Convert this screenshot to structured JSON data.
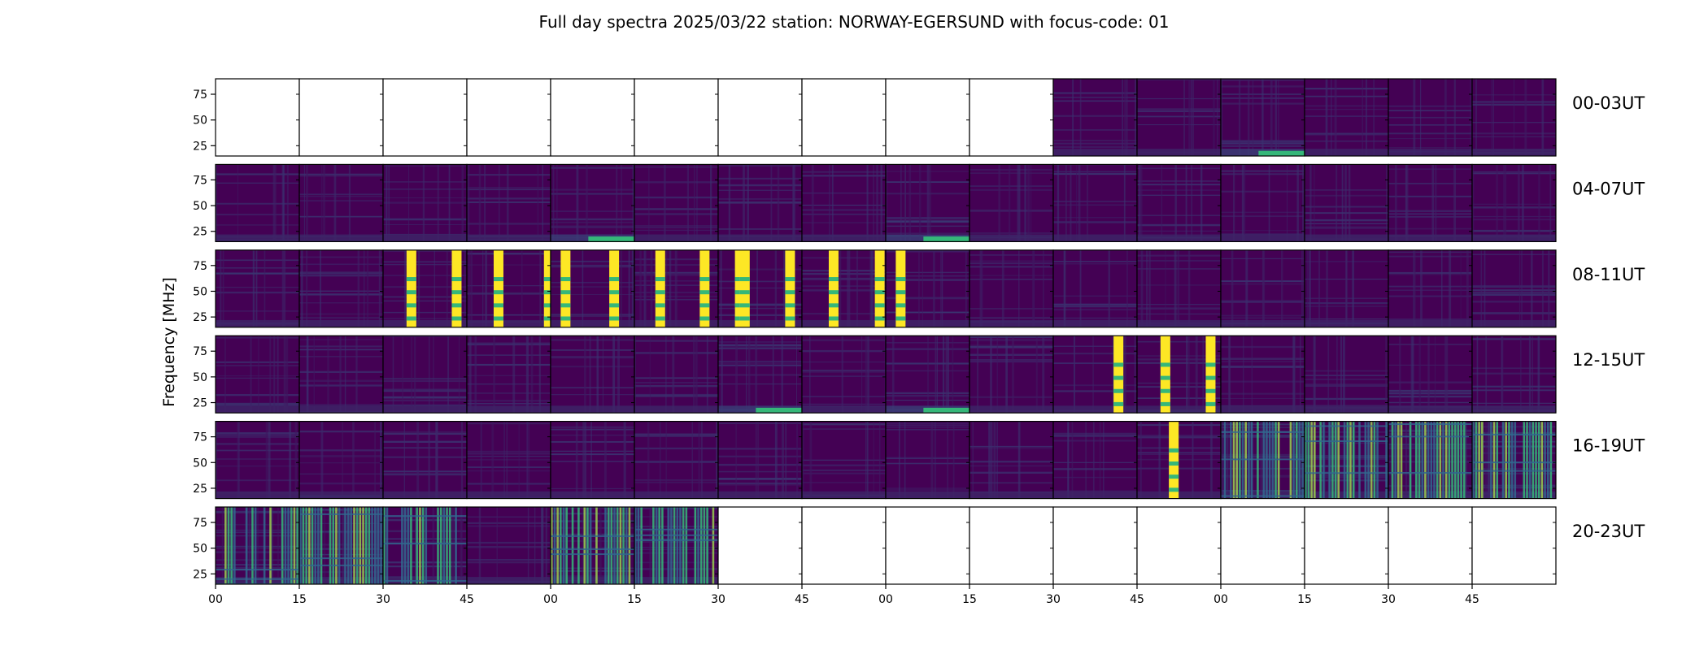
{
  "chart_data": {
    "type": "heatmap",
    "title": "Full day spectra 2025/03/22 station: NORWAY-EGERSUND with focus-code: 01",
    "ylabel": "Frequency [MHz]",
    "xlabel": "",
    "ylim": [
      15,
      90
    ],
    "y_ticks": [
      25,
      50,
      75
    ],
    "x_tick_labels": [
      "00",
      "15",
      "30",
      "45",
      "00",
      "15",
      "30",
      "45",
      "00",
      "15",
      "30",
      "45",
      "00",
      "15",
      "30",
      "45"
    ],
    "panels_per_row": 16,
    "panel_minutes": 15,
    "colormap": "viridis",
    "colors": {
      "background": "#440154",
      "mid": "#31688e",
      "high": "#35b779",
      "peak": "#fde725"
    },
    "rows": [
      {
        "label": "00-03UT",
        "panels": [
          {
            "data": false
          },
          {
            "data": false
          },
          {
            "data": false
          },
          {
            "data": false
          },
          {
            "data": false
          },
          {
            "data": false
          },
          {
            "data": false
          },
          {
            "data": false
          },
          {
            "data": false
          },
          {
            "data": false
          },
          {
            "data": true,
            "activity": 0.25
          },
          {
            "data": true,
            "activity": 0.2
          },
          {
            "data": true,
            "activity": 0.35,
            "low_band": true
          },
          {
            "data": true,
            "activity": 0.25
          },
          {
            "data": true,
            "activity": 0.2
          },
          {
            "data": true,
            "activity": 0.2
          }
        ]
      },
      {
        "label": "04-07UT",
        "panels": [
          {
            "data": true,
            "activity": 0.3
          },
          {
            "data": true,
            "activity": 0.25
          },
          {
            "data": true,
            "activity": 0.3
          },
          {
            "data": true,
            "activity": 0.25
          },
          {
            "data": true,
            "activity": 0.4,
            "low_band": true
          },
          {
            "data": true,
            "activity": 0.25
          },
          {
            "data": true,
            "activity": 0.3
          },
          {
            "data": true,
            "activity": 0.3
          },
          {
            "data": true,
            "activity": 0.45,
            "low_band": true
          },
          {
            "data": true,
            "activity": 0.25
          },
          {
            "data": true,
            "activity": 0.3
          },
          {
            "data": true,
            "activity": 0.25
          },
          {
            "data": true,
            "activity": 0.3
          },
          {
            "data": true,
            "activity": 0.3
          },
          {
            "data": true,
            "activity": 0.3
          },
          {
            "data": true,
            "activity": 0.35
          }
        ]
      },
      {
        "label": "08-11UT",
        "panels": [
          {
            "data": true,
            "activity": 0.3
          },
          {
            "data": true,
            "activity": 0.35
          },
          {
            "data": true,
            "activity": 0.3,
            "bursts": [
              0.28,
              0.82
            ]
          },
          {
            "data": true,
            "activity": 0.3,
            "bursts": [
              0.32,
              0.92
            ]
          },
          {
            "data": true,
            "activity": 0.3,
            "bursts": [
              0.12,
              0.7
            ]
          },
          {
            "data": true,
            "activity": 0.3,
            "bursts": [
              0.25,
              0.78
            ]
          },
          {
            "data": true,
            "activity": 0.35,
            "bursts": [
              0.2,
              0.26,
              0.8
            ]
          },
          {
            "data": true,
            "activity": 0.3,
            "bursts": [
              0.32,
              0.87
            ]
          },
          {
            "data": true,
            "activity": 0.35,
            "bursts": [
              0.12
            ]
          },
          {
            "data": true,
            "activity": 0.25
          },
          {
            "data": true,
            "activity": 0.3
          },
          {
            "data": true,
            "activity": 0.3
          },
          {
            "data": true,
            "activity": 0.3
          },
          {
            "data": true,
            "activity": 0.3
          },
          {
            "data": true,
            "activity": 0.3
          },
          {
            "data": true,
            "activity": 0.3
          }
        ]
      },
      {
        "label": "12-15UT",
        "panels": [
          {
            "data": true,
            "activity": 0.35
          },
          {
            "data": true,
            "activity": 0.3
          },
          {
            "data": true,
            "activity": 0.35
          },
          {
            "data": true,
            "activity": 0.35
          },
          {
            "data": true,
            "activity": 0.3
          },
          {
            "data": true,
            "activity": 0.3
          },
          {
            "data": true,
            "activity": 0.45,
            "low_band": true
          },
          {
            "data": true,
            "activity": 0.3
          },
          {
            "data": true,
            "activity": 0.4,
            "low_band": true
          },
          {
            "data": true,
            "activity": 0.25
          },
          {
            "data": true,
            "activity": 0.3,
            "bursts": [
              0.72
            ]
          },
          {
            "data": true,
            "activity": 0.3,
            "bursts": [
              0.28,
              0.82
            ]
          },
          {
            "data": true,
            "activity": 0.3
          },
          {
            "data": true,
            "activity": 0.3
          },
          {
            "data": true,
            "activity": 0.35
          },
          {
            "data": true,
            "activity": 0.35
          }
        ]
      },
      {
        "label": "16-19UT",
        "panels": [
          {
            "data": true,
            "activity": 0.25
          },
          {
            "data": true,
            "activity": 0.25
          },
          {
            "data": true,
            "activity": 0.25
          },
          {
            "data": true,
            "activity": 0.25
          },
          {
            "data": true,
            "activity": 0.25
          },
          {
            "data": true,
            "activity": 0.25
          },
          {
            "data": true,
            "activity": 0.25
          },
          {
            "data": true,
            "activity": 0.2
          },
          {
            "data": true,
            "activity": 0.25
          },
          {
            "data": true,
            "activity": 0.2
          },
          {
            "data": true,
            "activity": 0.3
          },
          {
            "data": true,
            "activity": 0.3,
            "bursts": [
              0.38
            ]
          },
          {
            "data": true,
            "activity": 0.85,
            "stripes": true
          },
          {
            "data": true,
            "activity": 0.9,
            "stripes": true
          },
          {
            "data": true,
            "activity": 0.8,
            "stripes": true
          },
          {
            "data": true,
            "activity": 0.85,
            "stripes": true
          }
        ]
      },
      {
        "label": "20-23UT",
        "panels": [
          {
            "data": true,
            "activity": 0.8,
            "stripes": true
          },
          {
            "data": true,
            "activity": 0.6,
            "stripes": true
          },
          {
            "data": true,
            "activity": 0.6,
            "stripes": true
          },
          {
            "data": true,
            "activity": 0.3
          },
          {
            "data": true,
            "activity": 0.55,
            "stripes": true
          },
          {
            "data": true,
            "activity": 0.55,
            "stripes": true
          },
          {
            "data": false
          },
          {
            "data": false
          },
          {
            "data": false
          },
          {
            "data": false
          },
          {
            "data": false
          },
          {
            "data": false
          },
          {
            "data": false
          },
          {
            "data": false
          },
          {
            "data": false
          },
          {
            "data": false
          }
        ]
      }
    ]
  }
}
